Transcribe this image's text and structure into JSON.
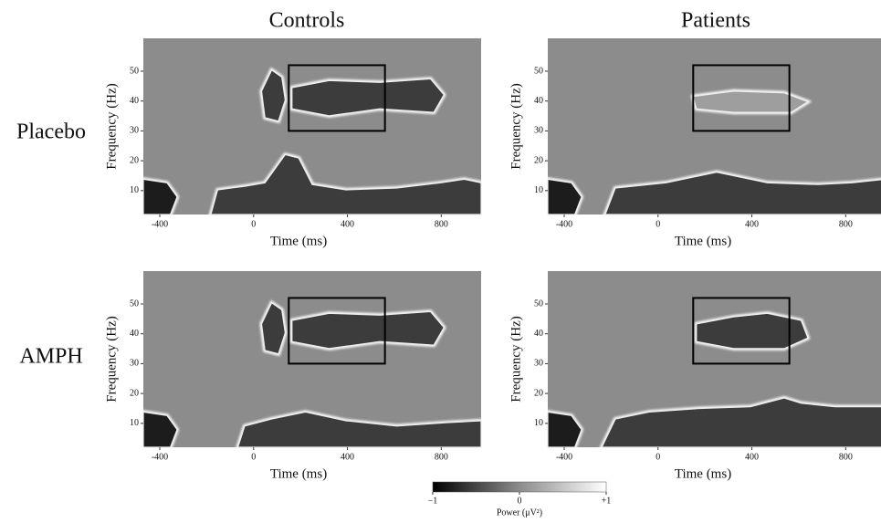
{
  "column_titles": [
    "Controls",
    "Patients"
  ],
  "row_labels": [
    "Placebo",
    "AMPH"
  ],
  "chart_data": [
    {
      "type": "heatmap",
      "xlabel": "Time (ms)",
      "ylabel": "Frequency (Hz)",
      "xlim": [
        -470,
        970
      ],
      "ylim": [
        2,
        61
      ],
      "xticks": [
        -400,
        0,
        400,
        800
      ],
      "yticks": [
        10,
        20,
        30,
        40,
        50
      ],
      "roi": {
        "x": [
          150,
          560
        ],
        "y": [
          30,
          52
        ]
      }
    },
    {
      "type": "heatmap",
      "xlabel": "Time (ms)",
      "ylabel": "Frequency (Hz)",
      "xlim": [
        -470,
        970
      ],
      "ylim": [
        2,
        61
      ],
      "xticks": [
        -400,
        0,
        400,
        800
      ],
      "yticks": [
        10,
        20,
        30,
        40,
        50
      ],
      "roi": {
        "x": [
          150,
          560
        ],
        "y": [
          30,
          52
        ]
      }
    },
    {
      "type": "heatmap",
      "xlabel": "Time (ms)",
      "ylabel": "Frequency (Hz)",
      "xlim": [
        -470,
        970
      ],
      "ylim": [
        2,
        61
      ],
      "xticks": [
        -400,
        0,
        400,
        800
      ],
      "yticks": [
        10,
        20,
        30,
        40,
        50
      ],
      "roi": {
        "x": [
          150,
          560
        ],
        "y": [
          30,
          52
        ]
      }
    },
    {
      "type": "heatmap",
      "xlabel": "Time (ms)",
      "ylabel": "Frequency (Hz)",
      "xlim": [
        -470,
        970
      ],
      "ylim": [
        2,
        61
      ],
      "xticks": [
        -400,
        0,
        400,
        800
      ],
      "yticks": [
        10,
        20,
        30,
        40,
        50
      ],
      "roi": {
        "x": [
          150,
          560
        ],
        "y": [
          30,
          52
        ]
      }
    }
  ],
  "colorbar": {
    "lim": [
      -1,
      1
    ],
    "ticks": [
      {
        "value": -1,
        "label": "−1"
      },
      0,
      {
        "value": 1,
        "label": "+1"
      }
    ],
    "label": "Power (μV²)"
  }
}
